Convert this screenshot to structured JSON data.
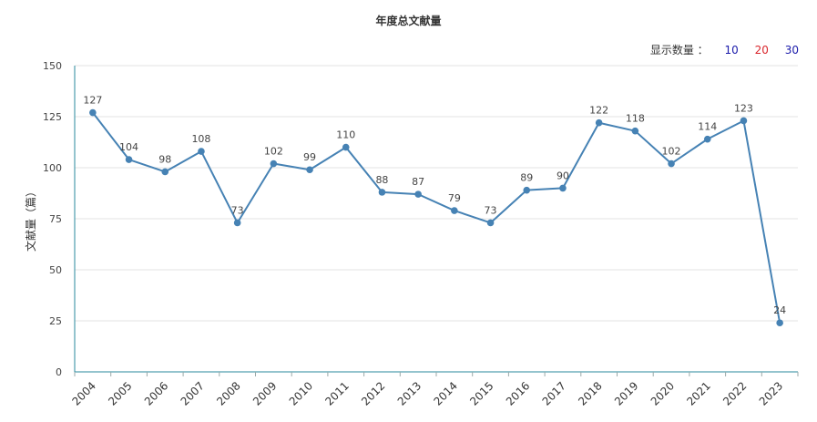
{
  "title": "年度总文献量",
  "show_count": {
    "label": "显示数量 ：",
    "options": [
      "10",
      "20",
      "30"
    ]
  },
  "chart_data": {
    "type": "line",
    "title": "年度总文献量",
    "xlabel": "",
    "ylabel": "文献量（篇）",
    "ylim": [
      0,
      150
    ],
    "yticks": [
      0,
      25,
      50,
      75,
      100,
      125,
      150
    ],
    "grid": true,
    "color": "#4682b4",
    "categories": [
      "2004",
      "2005",
      "2006",
      "2007",
      "2008",
      "2009",
      "2010",
      "2011",
      "2012",
      "2013",
      "2014",
      "2015",
      "2016",
      "2017",
      "2018",
      "2019",
      "2020",
      "2021",
      "2022",
      "2023"
    ],
    "values": [
      127,
      104,
      98,
      108,
      73,
      102,
      99,
      110,
      88,
      87,
      79,
      73,
      89,
      90,
      122,
      118,
      102,
      114,
      123,
      24
    ]
  }
}
